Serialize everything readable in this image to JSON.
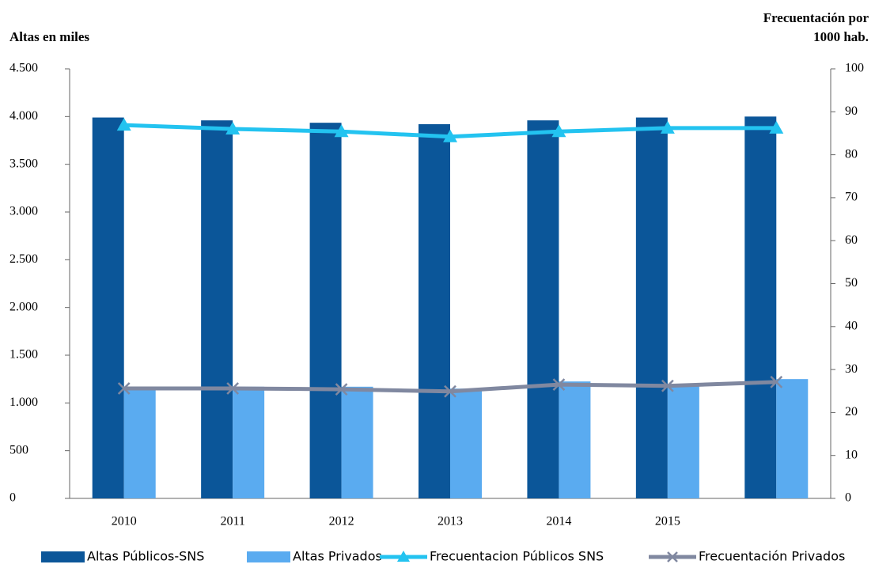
{
  "chart_data": {
    "type": "bar",
    "ylabel": "Altas en miles",
    "y2label": [
      "Frecuentación por",
      "1000 hab."
    ],
    "categories": [
      "2010",
      "2011",
      "2012",
      "2013",
      "2014",
      "2015",
      null
    ],
    "series": [
      {
        "name": "Altas Públicos-SNS",
        "type": "bar",
        "color": "#0b5699",
        "values": [
          3990,
          3960,
          3935,
          3920,
          3960,
          3990,
          4000
        ]
      },
      {
        "name": "Altas Privados",
        "type": "bar",
        "color": "#5aabf0",
        "values": [
          1170,
          1170,
          1170,
          1150,
          1225,
          1185,
          1250
        ]
      },
      {
        "name": "Frecuentacion Públicos SNS",
        "type": "line",
        "marker": "triangle",
        "axis": "y2",
        "color": "#23c3f0",
        "values": [
          86.9,
          86.0,
          85.4,
          84.2,
          85.4,
          86.2,
          86.2
        ]
      },
      {
        "name": "Frecuentación Privados",
        "type": "line",
        "marker": "x",
        "axis": "y2",
        "color": "#8088a0",
        "values": [
          25.6,
          25.6,
          25.4,
          24.9,
          26.5,
          26.2,
          27.1
        ]
      }
    ],
    "ylim": [
      0,
      4500
    ],
    "yticks": [
      0,
      500,
      {
        "value": 1000,
        "label": "1.000"
      },
      {
        "value": 1500,
        "label": "1.500"
      },
      {
        "value": 2000,
        "label": "2.000"
      },
      {
        "value": 2500,
        "label": "2.500"
      },
      {
        "value": 3000,
        "label": "3.000"
      },
      {
        "value": 3500,
        "label": "3.500"
      },
      {
        "value": 4000,
        "label": "4.000"
      },
      {
        "value": 4500,
        "label": "4.500"
      }
    ],
    "y2lim": [
      0,
      100
    ],
    "y2ticks": [
      0,
      10,
      20,
      30,
      40,
      50,
      60,
      70,
      80,
      90,
      100
    ],
    "grid": false,
    "legend": "bottom"
  }
}
